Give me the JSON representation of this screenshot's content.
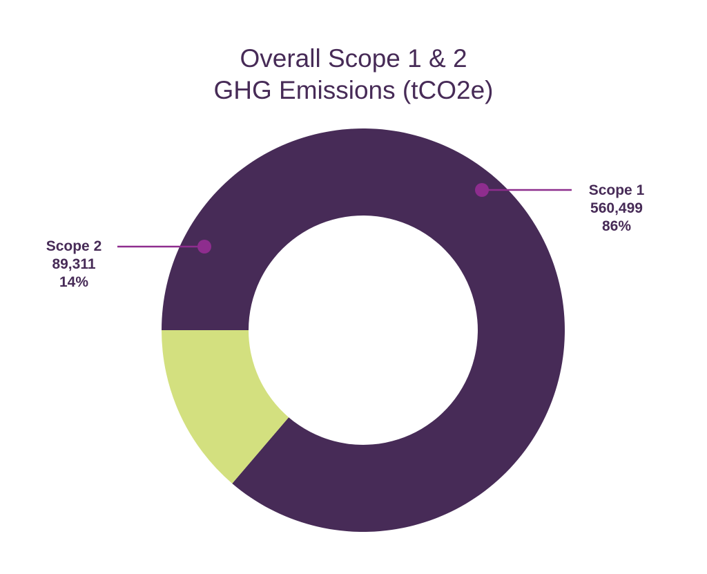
{
  "chart_data": {
    "type": "pie",
    "title_lines": [
      "Overall Scope 1 & 2",
      "GHG Emissions (tCO2e)"
    ],
    "slices": [
      {
        "label": "Scope 1",
        "value": 560499,
        "value_label": "560,499",
        "percent_label": "86%",
        "color": "#472b57"
      },
      {
        "label": "Scope 2",
        "value": 89311,
        "value_label": "89,311",
        "percent_label": "14%",
        "color": "#d3e07f"
      }
    ],
    "donut": true,
    "label_color": "#472b57",
    "marker_color": "#8e2d8e"
  }
}
